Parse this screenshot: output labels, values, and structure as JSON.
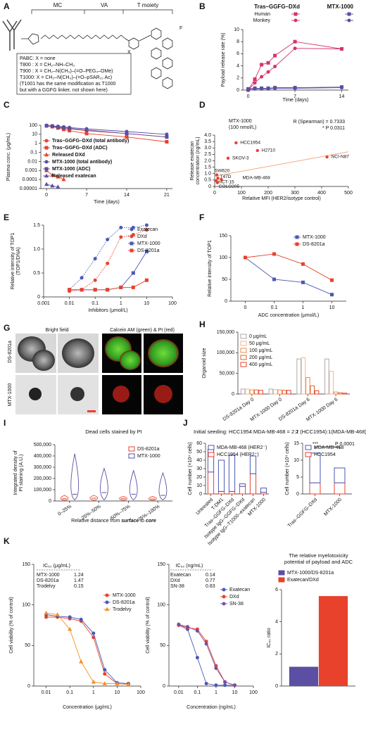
{
  "structure": {
    "panel": "A",
    "labels": [
      "MC",
      "VA",
      "T moiety"
    ],
    "atoms": [
      "X",
      "F"
    ],
    "legend": [
      "PABC: X = none",
      "T800 : X = CH₂–NH–CH₃",
      "T900 : X = CH₂–N(CH₃)–(=O–PEG₄–OMe)",
      "T1000: X = CH₂–N(CH₃)–(=O–pSAR₁₀ Ac)",
      "(T1001 has the same modification as T1000",
      "but with a GGFG linker, not shown here)"
    ]
  },
  "images": {
    "panel": "G",
    "columns": [
      "Bright field",
      "Calcein AM (green) & PI (red)"
    ],
    "rows": [
      "DS-8201a",
      "MTX-1000"
    ]
  },
  "chart_data": [
    {
      "type": "line",
      "panel": "B",
      "legend_groups": [
        "Tras–GGFG–DXd",
        "MTX-1000"
      ],
      "x": [
        0,
        1,
        2,
        3,
        4,
        7,
        14
      ],
      "xlim": [
        -0.8,
        15
      ],
      "xticks": [
        0,
        7,
        14
      ],
      "ylim": [
        0,
        10
      ],
      "yticks": [
        0,
        2,
        4,
        6,
        8,
        10
      ],
      "ylabel": "Payload release rate (%)",
      "xlabel": "Time (days)",
      "series": [
        {
          "name": "Human",
          "color": "#d6336c",
          "marker": "square",
          "values": [
            0,
            1.8,
            4.2,
            4.5,
            5.7,
            8,
            6.8
          ]
        },
        {
          "name": "Monkey",
          "color": "#d6336c",
          "marker": "circle",
          "values": [
            0,
            1.2,
            2.2,
            3,
            3.9,
            6.9,
            6.8
          ]
        },
        {
          "color": "#5a4fa2",
          "marker": "square",
          "values": [
            0.2,
            0.3,
            0.3,
            0.3,
            0.4,
            0.4,
            0.5
          ]
        },
        {
          "color": "#5a4fa2",
          "marker": "circle",
          "values": [
            0.1,
            0.2,
            0.2,
            0.2,
            0.3,
            0.3,
            0.4
          ]
        }
      ]
    },
    {
      "type": "line",
      "panel": "C",
      "ylog": true,
      "x": [
        0,
        1,
        2,
        3,
        4,
        7,
        14,
        21
      ],
      "xlim": [
        -1,
        22
      ],
      "xticks": [
        0,
        7,
        14,
        21
      ],
      "ylim": [
        1e-05,
        100
      ],
      "yticks": [
        1e-05,
        0.0001,
        0.001,
        0.01,
        0.1,
        1,
        10,
        100
      ],
      "ylabel": "Plasma conc. (μg/mL)",
      "xlabel": "Time (days)",
      "legend": "lower left",
      "series": [
        {
          "name": "Tras–GGFG–DXd (total antibody)",
          "color": "#e8412c",
          "marker": "circle",
          "values": [
            90,
            80,
            60,
            45,
            40,
            25,
            12,
            5
          ]
        },
        {
          "name": "Tras–GGFG–DXd (ADC)",
          "color": "#e8412c",
          "marker": "square",
          "values": [
            85,
            70,
            50,
            35,
            25,
            12,
            5,
            1.5
          ]
        },
        {
          "name": "Released DXd",
          "color": "#e8412c",
          "marker": "triangle",
          "x": [
            0,
            1,
            2,
            3
          ],
          "values": [
            0.001,
            0.0003,
            0.0002,
            0.0001
          ]
        },
        {
          "name": "MTX-1000 (total antibody)",
          "color": "#5a4fa2",
          "marker": "circle",
          "values": [
            95,
            85,
            75,
            65,
            55,
            40,
            20,
            10
          ]
        },
        {
          "name": "MTX-1000 (ADC)",
          "color": "#5a4fa2",
          "marker": "square",
          "values": [
            90,
            80,
            65,
            55,
            45,
            30,
            12,
            5
          ]
        },
        {
          "name": "Released exatecan",
          "color": "#5a4fa2",
          "marker": "triangle",
          "x": [
            0,
            1,
            2
          ],
          "values": [
            3e-05,
            2e-05,
            1.5e-05
          ]
        }
      ]
    },
    {
      "type": "scatter",
      "panel": "D",
      "color": "#e8412c",
      "labels": [
        "HCC1954",
        "H2710",
        "SKOV-3",
        "NCI-N87",
        "SW620",
        "T47D",
        "MDA-MB-468",
        "HCT-15",
        "COLO205"
      ],
      "x": [
        80,
        160,
        50,
        420,
        8,
        12,
        25,
        6,
        10
      ],
      "values": [
        3.4,
        2.8,
        2.2,
        2.3,
        0.9,
        0.65,
        0.55,
        0.45,
        0.3
      ],
      "fit": {
        "x": [
          0,
          500
        ],
        "y": [
          0.8,
          2.7
        ],
        "color": "#f0a070"
      },
      "xlim": [
        0,
        500
      ],
      "xticks": [
        0,
        100,
        200,
        300,
        400,
        500
      ],
      "ylim": [
        0,
        4
      ],
      "yticks": [
        0,
        0.5,
        {
          "value": 1,
          "label": "1.0"
        },
        1.5,
        {
          "value": 2,
          "label": "2.0"
        },
        2.5,
        {
          "value": 3,
          "label": "3.0"
        },
        3.5,
        {
          "value": 4,
          "label": "4.0"
        }
      ],
      "ylabel": [
        "Release exatecan",
        "concentration (ng/mL)"
      ],
      "xlabel": "Relative MFI (HER2/isotype control)",
      "annotations": [
        "MTX-1000",
        "(100 nmol/L)",
        "R (Spearman) = 0.7333",
        "* P 0.0311"
      ]
    },
    {
      "type": "line",
      "panel": "E",
      "xlog": true,
      "x": [
        0.01,
        0.03,
        0.1,
        0.3,
        1,
        3,
        10
      ],
      "xlim": [
        0.001,
        100
      ],
      "xticks": [
        0.001,
        0.01,
        0.1,
        1,
        10,
        100
      ],
      "ylim": [
        0,
        1.5
      ],
      "yticks": [
        0,
        0.5,
        {
          "value": 1,
          "label": "1.0"
        },
        1.5
      ],
      "ylabel": [
        "Relative intensity of TOP1",
        "(TOP1/DNA)"
      ],
      "xlabel": "Inhibitors (μmol/L)",
      "legend": "upper right",
      "series": [
        {
          "name": "Exatecan",
          "color": "#4a58b5",
          "marker": "circle",
          "dash": true,
          "values": [
            0.15,
            0.4,
            0.8,
            1.2,
            1.45,
            1.45,
            1.5
          ]
        },
        {
          "name": "DXd",
          "color": "#e8412c",
          "marker": "circle",
          "dash": true,
          "values": [
            0.12,
            0.15,
            0.35,
            0.7,
            1.25,
            1.3,
            1.4
          ]
        },
        {
          "name": "MTX-1000",
          "color": "#4a58b5",
          "marker": "square",
          "values": [
            0.15,
            0.15,
            0.15,
            0.15,
            0.2,
            0.5,
            0.95
          ]
        },
        {
          "name": "DS-8201a",
          "color": "#e8412c",
          "marker": "square",
          "values": [
            0.15,
            0.15,
            0.15,
            0.15,
            0.2,
            0.2,
            0.35
          ]
        }
      ]
    },
    {
      "type": "line",
      "panel": "F",
      "categories": [
        "0",
        "0.1",
        "1",
        "10"
      ],
      "ylim": [
        0,
        150
      ],
      "yticks": [
        0,
        50,
        100,
        150
      ],
      "ylabel": "Relative intensity of TOP1",
      "xlabel": "ADC concentration (μmol/L)",
      "legend": "upper right",
      "series": [
        {
          "name": "MTX-1000",
          "color": "#4a58b5",
          "marker": "square",
          "values": [
            100,
            50,
            43,
            15
          ]
        },
        {
          "name": "DS-8201a",
          "color": "#e8412c",
          "marker": "square",
          "values": [
            100,
            108,
            85,
            48
          ]
        }
      ]
    },
    {
      "type": "bar",
      "panel": "H",
      "hollow": true,
      "categories": [
        "DS-8201a Day 0",
        "MTX-1000 Day 0",
        "DS-8201a Day 6",
        "MTX-1000 Day 6"
      ],
      "ylim": [
        0,
        150000
      ],
      "yticks": [
        0,
        {
          "value": 50000,
          "label": "50,000"
        },
        {
          "value": 100000,
          "label": "100,000"
        },
        {
          "value": 150000,
          "label": "150,000"
        }
      ],
      "ylabel": "Organoid size",
      "legend": "upper left",
      "series": [
        {
          "name": "0 μg/mL",
          "color": "#aaaaaa",
          "values": [
            12000,
            12000,
            85000,
            85000
          ]
        },
        {
          "name": "50 μg/mL",
          "color": "#f6b48a",
          "values": [
            12000,
            11000,
            88000,
            55000
          ]
        },
        {
          "name": "100 μg/mL",
          "color": "#f08a4b",
          "values": [
            10000,
            10000,
            40000,
            5000
          ]
        },
        {
          "name": "200 μg/mL",
          "color": "#d9652b",
          "values": [
            10000,
            9000,
            20000,
            3000
          ]
        },
        {
          "name": "400 μg/mL",
          "color": "#e8412c",
          "values": [
            9000,
            9000,
            8000,
            2000
          ]
        }
      ]
    },
    {
      "type": "violin",
      "panel": "I",
      "title": "Dead cells stained by PI",
      "categories": [
        "0–25%",
        "25%–50%",
        "50%–75%",
        "75%–100%"
      ],
      "ylim": [
        0,
        500000
      ],
      "yticks": [
        0,
        {
          "value": 100000,
          "label": "100,000"
        },
        {
          "value": 200000,
          "label": "200,000"
        },
        {
          "value": 300000,
          "label": "300,000"
        },
        {
          "value": 400000,
          "label": "400,000"
        },
        {
          "value": 500000,
          "label": "500,000"
        }
      ],
      "ylabel": [
        "Integrated density of",
        "PI staining (A.U.)"
      ],
      "xlabel": [
        "Relative distance from ",
        "surface",
        " to ",
        "core"
      ],
      "legend": "upper right",
      "series": [
        {
          "name": "DS-8201a",
          "color": "#e8412c",
          "min": [
            5000,
            5000,
            5000,
            5000
          ],
          "median": [
            20000,
            25000,
            20000,
            18000
          ],
          "max": [
            50000,
            50000,
            40000,
            40000
          ]
        },
        {
          "name": "MTX-1000",
          "color": "#5a4fa2",
          "min": [
            10000,
            10000,
            10000,
            10000
          ],
          "median": [
            60000,
            75000,
            60000,
            50000
          ],
          "max": [
            420000,
            290000,
            270000,
            250000
          ]
        }
      ]
    },
    {
      "type": "bar",
      "panel": "J",
      "stacked": true,
      "hollow": true,
      "title": "Initial seeding: HCC1954:MDA-MB-468 = 2:1",
      "categories": [
        "Untreated",
        "T-DM1",
        "Tras–GGFG–DXd",
        "Isotype IgG–GGFG–DXd",
        "Isotype IgG–T1000–exatecan",
        "MTX-1000"
      ],
      "ylim": [
        0,
        60
      ],
      "yticks": [
        0,
        10,
        20,
        30,
        40,
        50,
        60
      ],
      "ylabel": "Cell number (×10⁴ cells)",
      "legend": "upper right",
      "series": [
        {
          "name": "HCC1954 (HER2⁺)",
          "color": "#e8412c",
          "values": [
            26,
            3,
            3,
            9,
            24,
            2
          ]
        },
        {
          "name": "MDA-MB-468 (HER2⁻)",
          "color": "#4a58b5",
          "values": [
            27,
            37,
            43,
            3,
            21,
            5
          ]
        }
      ]
    },
    {
      "type": "bar",
      "stacked": true,
      "hollow": true,
      "title": "2 (HCC1954):1(MDA-MB-468)",
      "categories": [
        "Tras–GGFG–DXd",
        "MTX-1000"
      ],
      "ylim": [
        0,
        15
      ],
      "yticks": [
        0,
        5,
        10,
        15
      ],
      "ylabel": "Cell number (×10⁴ cells)",
      "legend": "upper right",
      "annotations": [
        "***",
        "P 0.0001"
      ],
      "series": [
        {
          "name": "HCC1954",
          "color": "#e8412c",
          "values": [
            3.3,
            3.3
          ]
        },
        {
          "name": "MDA-MB-468",
          "color": "#4a58b5",
          "values": [
            8.8,
            4.4
          ]
        }
      ]
    },
    {
      "type": "line",
      "panel": "K",
      "xlog": true,
      "x": [
        0.01,
        0.03,
        0.1,
        0.3,
        1,
        3,
        10,
        30
      ],
      "xlim": [
        0.003,
        100
      ],
      "xticks": [
        0.01,
        0.1,
        1,
        10,
        100
      ],
      "ylim": [
        0,
        150
      ],
      "yticks": [
        0,
        50,
        100,
        150
      ],
      "ylabel": "Cell viability (% of control)",
      "xlabel": "Concentration (μg/mL)",
      "legend": "upper right",
      "ic50": {
        "header": "IC₅₀ (μg/mL)",
        "rows": [
          [
            "MTX-1000",
            1.24
          ],
          [
            "DS-8201a",
            1.47
          ],
          [
            "Trodelvy",
            0.15
          ]
        ]
      },
      "series": [
        {
          "name": "MTX-1000",
          "color": "#e8412c",
          "marker": "circle",
          "values": [
            85,
            85,
            83,
            80,
            60,
            15,
            3,
            2
          ]
        },
        {
          "name": "DS-8201a",
          "color": "#4a58b5",
          "marker": "circle",
          "values": [
            88,
            86,
            85,
            82,
            65,
            20,
            4,
            3
          ]
        },
        {
          "name": "Trodelvy",
          "color": "#f29222",
          "marker": "triangle",
          "values": [
            90,
            88,
            70,
            30,
            5,
            3,
            3,
            2
          ]
        }
      ]
    },
    {
      "type": "line",
      "xlog": true,
      "x": [
        0.01,
        0.03,
        0.1,
        0.3,
        1,
        3,
        10
      ],
      "xlim": [
        0.003,
        100
      ],
      "xticks": [
        0.01,
        0.1,
        1,
        10,
        100
      ],
      "ylim": [
        0,
        150
      ],
      "yticks": [
        0,
        50,
        100,
        150
      ],
      "ylabel": "Cell viability (% of control)",
      "xlabel": "Concentration (ng/mL)",
      "legend": "upper right",
      "ic50": {
        "header": "IC₅₀ (ng/mL)",
        "rows": [
          [
            "Exatecan",
            0.14
          ],
          [
            "DXd",
            0.77
          ],
          [
            "SN-38",
            0.83
          ]
        ]
      },
      "series": [
        {
          "name": "Exatecan",
          "color": "#4a58b5",
          "marker": "circle",
          "values": [
            75,
            70,
            35,
            3,
            1,
            1,
            1
          ]
        },
        {
          "name": "DXd",
          "color": "#e8412c",
          "marker": "circle",
          "values": [
            75,
            72,
            70,
            55,
            25,
            5,
            1
          ]
        },
        {
          "name": "SN-38",
          "color": "#7a4fa2",
          "marker": "circle",
          "values": [
            76,
            73,
            68,
            52,
            22,
            5,
            1
          ]
        }
      ]
    },
    {
      "type": "bar",
      "title": [
        "The relative myelotoxicity",
        "potential of payload and ADC"
      ],
      "ylim": [
        0,
        6
      ],
      "yticks": [
        0,
        2,
        4,
        6
      ],
      "ylabel": "IC₅₀ ratio",
      "legend": "above",
      "series": [
        {
          "name": "MTX-1000/DS-8201a",
          "color": "#5a4fa2",
          "values": [
            1.2
          ]
        },
        {
          "name": "Exatecan/DXd",
          "color": "#e8412c",
          "values": [
            5.6
          ]
        }
      ]
    }
  ]
}
